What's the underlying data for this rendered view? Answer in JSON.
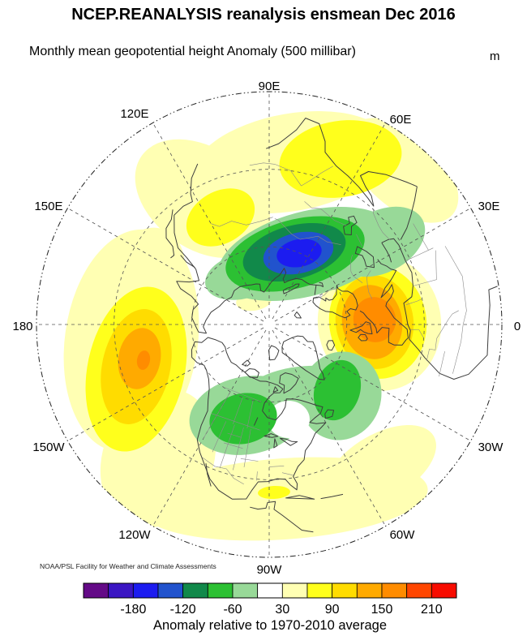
{
  "title": "NCEP.REANALYSIS reanalysis ensmean Dec 2016",
  "subtitle": "Monthly mean geopotential height Anomaly (500 millibar)",
  "units_label": "m",
  "attribution": "NOAA/PSL Facility for Weather and Climate Assessments",
  "map": {
    "projection": "Northern Hemisphere polar stereographic, 90E at top",
    "longitude_labels": [
      "90E",
      "60E",
      "30E",
      "0",
      "30W",
      "60W",
      "90W",
      "120W",
      "150W",
      "180",
      "150E",
      "120E"
    ]
  },
  "colorbar": {
    "caption": "Anomaly relative to 1970-2010 average",
    "tick_labels": [
      "-180",
      "-120",
      "-60",
      "30",
      "90",
      "150",
      "210"
    ],
    "levels": [
      -240,
      -210,
      -180,
      -150,
      -120,
      -90,
      -60,
      -30,
      30,
      60,
      90,
      120,
      150,
      180,
      210,
      240
    ],
    "colors": [
      "#640a87",
      "#3b16c3",
      "#1c1cf0",
      "#2153cd",
      "#11894a",
      "#2cc033",
      "#98d998",
      "#ffffff",
      "#ffffb3",
      "#ffff1c",
      "#ffdc00",
      "#ffaa00",
      "#ff8c00",
      "#ff4600",
      "#f80c00"
    ]
  },
  "chart_data": {
    "type": "heatmap",
    "title": "NCEP.REANALYSIS reanalysis ensmean Dec 2016",
    "subtitle": "Monthly mean geopotential height Anomaly (500 millibar)",
    "variable": "500 mb geopotential height anomaly",
    "period": "Dec 2016",
    "units": "m",
    "baseline": "1970-2010 average",
    "projection": "Northern Hemisphere polar stereographic, 90E at top, 0-90N",
    "contour_levels": [
      -240,
      -210,
      -180,
      -150,
      -120,
      -90,
      -60,
      -30,
      30,
      60,
      90,
      120,
      150,
      180,
      210,
      240
    ],
    "legend_position": "bottom",
    "grid": "dashed latitude circles (30N, 60N) and meridians every 30 degrees",
    "anomaly_centers": [
      {
        "region": "Urals / western Siberia (~60N, 60-80E)",
        "sign": "negative",
        "peak_range_m": "-180 to -150"
      },
      {
        "region": "Central Europe / Mediterranean (~45-50N, 0-15E)",
        "sign": "positive",
        "peak_range_m": "+150 to +180"
      },
      {
        "region": "Central North Pacific (~40N, 165W)",
        "sign": "positive",
        "peak_range_m": "+150 to +180"
      },
      {
        "region": "Western Canada (~52N, 105W)",
        "sign": "negative",
        "peak_range_m": "-90 to -60"
      },
      {
        "region": "Southern Greenland / Labrador Sea (~58N, 45W)",
        "sign": "negative",
        "peak_range_m": "-90 to -60"
      },
      {
        "region": "Siberia mid-latitude belt (~55N, 60-100E)",
        "sign": "positive",
        "peak_range_m": "+60 to +90"
      },
      {
        "region": "Southern United States / subtropical Atlantic",
        "sign": "positive",
        "peak_range_m": "+30 to +90"
      }
    ]
  }
}
